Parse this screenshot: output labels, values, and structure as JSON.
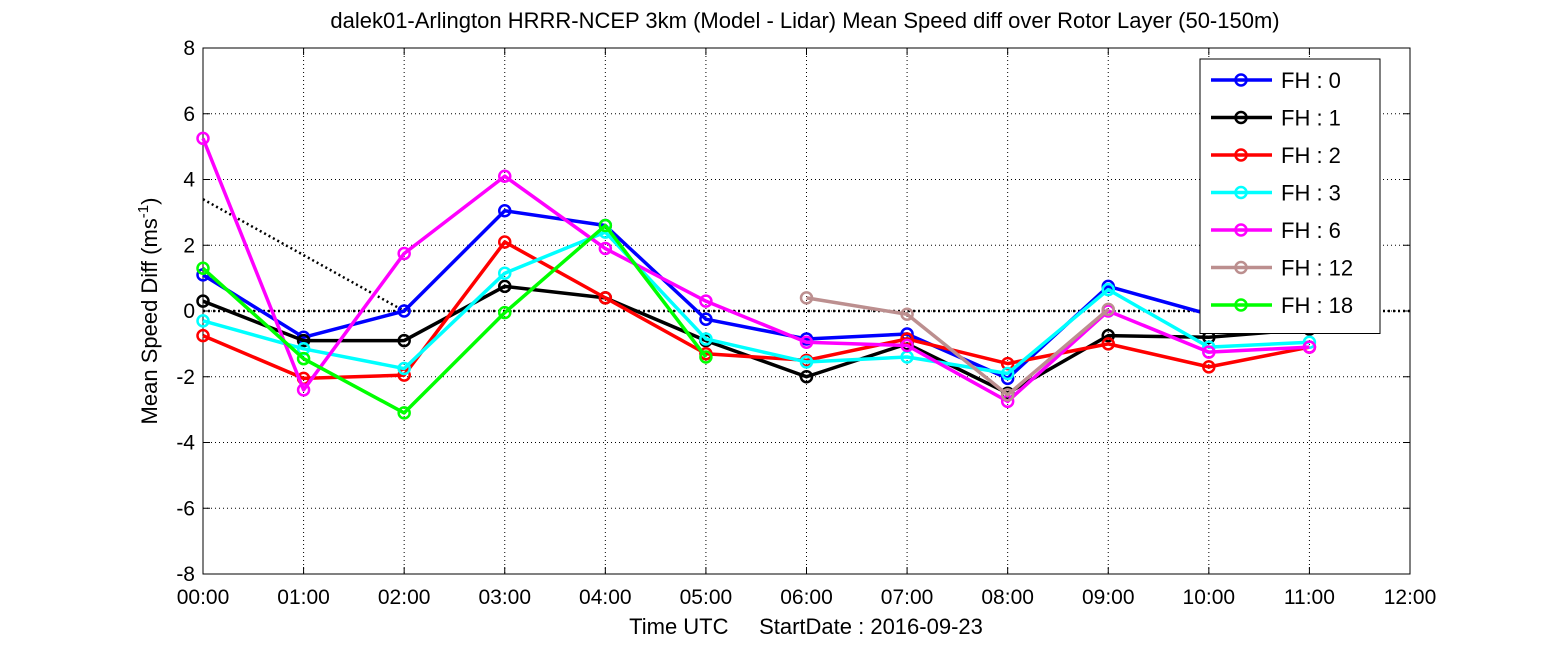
{
  "chart_data": {
    "type": "line",
    "title": "dalek01-Arlington HRRR-NCEP 3km (Model - Lidar) Mean Speed diff over Rotor Layer (50-150m)",
    "xlabel": "Time UTC     StartDate : 2016-09-23",
    "ylabel_main": "Mean Speed Diff (ms",
    "ylabel_sup": "-1",
    "ylabel_close": ")",
    "x_ticks": [
      "00:00",
      "01:00",
      "02:00",
      "03:00",
      "04:00",
      "05:00",
      "06:00",
      "07:00",
      "08:00",
      "09:00",
      "10:00",
      "11:00",
      "12:00"
    ],
    "xlim": [
      0,
      12
    ],
    "ylim": [
      -8,
      8
    ],
    "y_ticks": [
      "-8",
      "-6",
      "-4",
      "-2",
      "0",
      "2",
      "4",
      "6",
      "8"
    ],
    "grid": true,
    "legend_position": "top-right",
    "reference_lines": [
      {
        "style": "dotted",
        "color": "#000000",
        "x": [
          0,
          12
        ],
        "y": [
          0,
          0
        ]
      },
      {
        "style": "dotted",
        "color": "#000000",
        "x": [
          0,
          2
        ],
        "y": [
          3.4,
          0
        ]
      }
    ],
    "series": [
      {
        "name": "FH : 0",
        "color": "#0000ff",
        "x": [
          0,
          1,
          2,
          3,
          4,
          5,
          6,
          7,
          8,
          9,
          10,
          11
        ],
        "y": [
          1.1,
          -0.8,
          0.0,
          3.05,
          2.6,
          -0.25,
          -0.85,
          -0.7,
          -2.05,
          0.75,
          -0.1,
          -0.45
        ]
      },
      {
        "name": "FH : 1",
        "color": "#000000",
        "x": [
          0,
          1,
          2,
          3,
          4,
          5,
          6,
          7,
          8,
          9,
          10,
          11
        ],
        "y": [
          0.3,
          -0.9,
          -0.9,
          0.75,
          0.4,
          -0.9,
          -2.0,
          -1.0,
          -2.5,
          -0.75,
          -0.8,
          -0.55
        ]
      },
      {
        "name": "FH : 2",
        "color": "#ff0000",
        "x": [
          0,
          1,
          2,
          3,
          4,
          5,
          6,
          7,
          8,
          9,
          10,
          11
        ],
        "y": [
          -0.75,
          -2.05,
          -1.95,
          2.1,
          0.4,
          -1.3,
          -1.5,
          -0.85,
          -1.6,
          -1.0,
          -1.7,
          -1.1
        ]
      },
      {
        "name": "FH : 3",
        "color": "#00ffff",
        "x": [
          0,
          1,
          2,
          3,
          4,
          5,
          6,
          7,
          8,
          9,
          10,
          11
        ],
        "y": [
          -0.3,
          -1.15,
          -1.75,
          1.15,
          2.4,
          -0.85,
          -1.55,
          -1.4,
          -1.9,
          0.65,
          -1.1,
          -0.95
        ]
      },
      {
        "name": "FH : 6",
        "color": "#ff00ff",
        "x": [
          0,
          1,
          2,
          3,
          4,
          5,
          6,
          7,
          8,
          9,
          10,
          11
        ],
        "y": [
          5.25,
          -2.4,
          1.75,
          4.1,
          1.9,
          0.3,
          -0.95,
          -1.05,
          -2.75,
          0.0,
          -1.25,
          -1.1
        ]
      },
      {
        "name": "FH : 12",
        "color": "#bc8f8f",
        "x": [
          6,
          7,
          8,
          9
        ],
        "y": [
          0.4,
          -0.1,
          -2.55,
          0.05
        ]
      },
      {
        "name": "FH : 18",
        "color": "#00ff00",
        "x": [
          0,
          1,
          2,
          3,
          4,
          5
        ],
        "y": [
          1.3,
          -1.45,
          -3.1,
          -0.05,
          2.6,
          -1.4
        ]
      }
    ]
  }
}
